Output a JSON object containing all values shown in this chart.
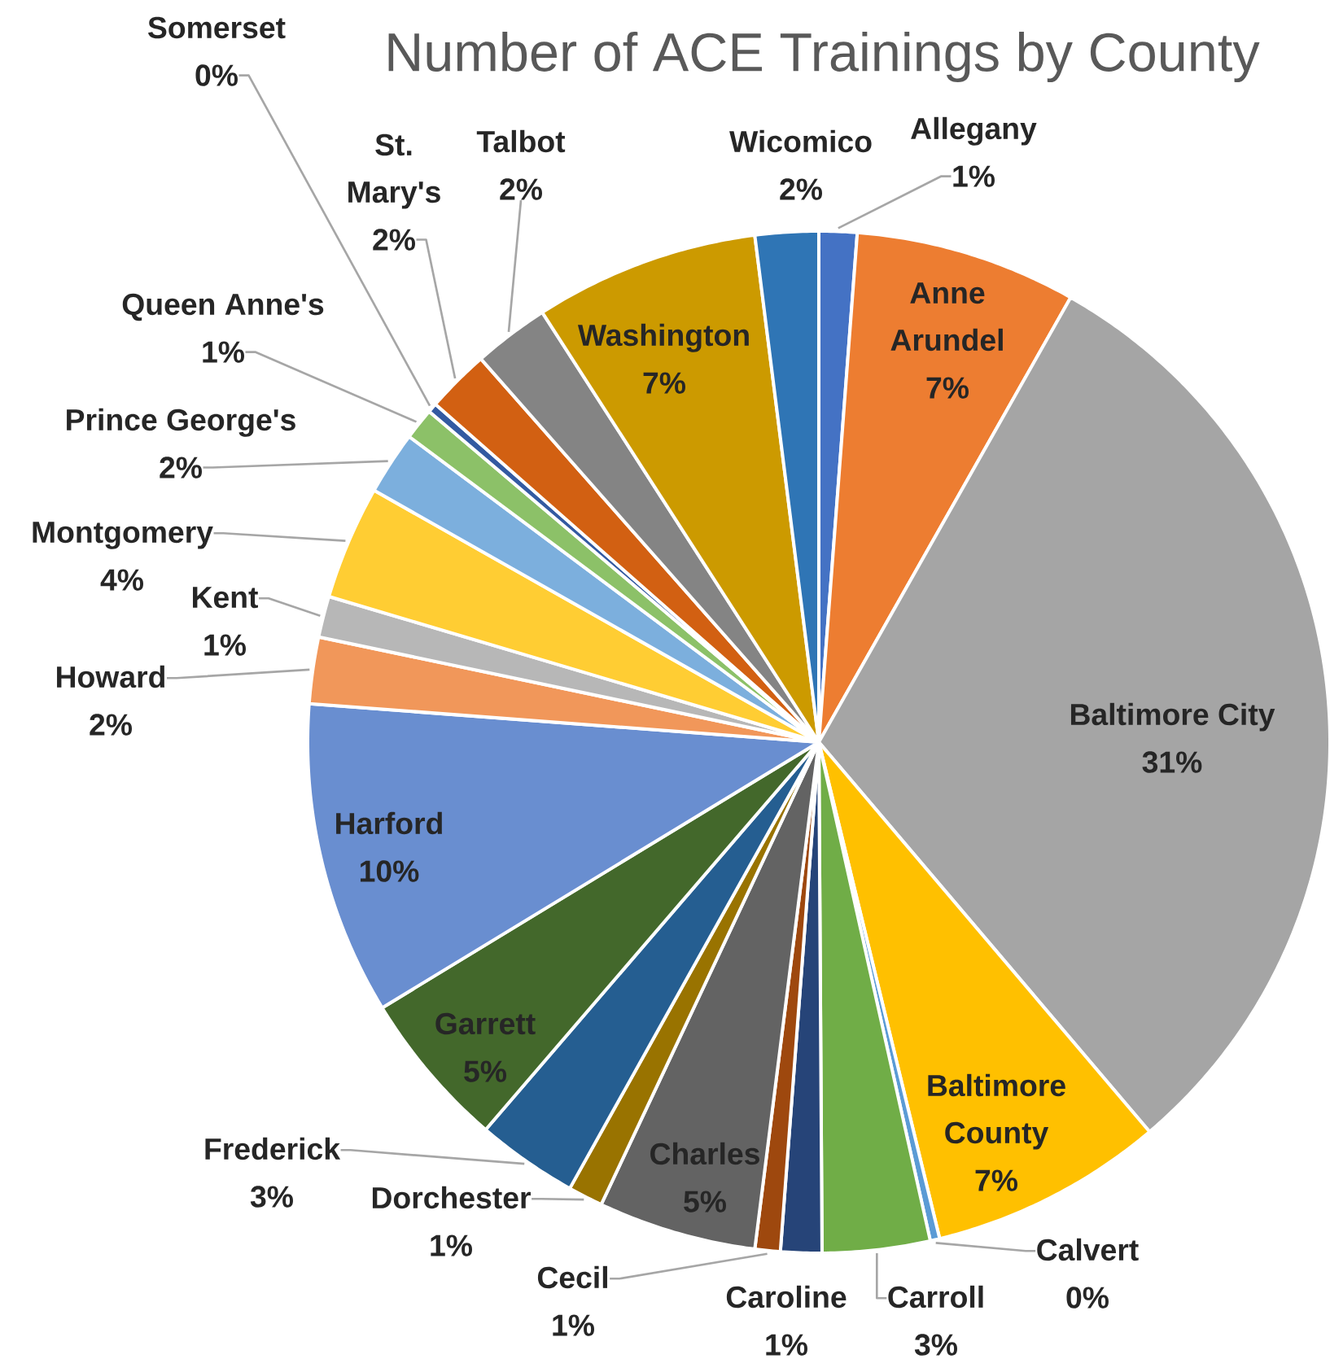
{
  "chart_data": {
    "type": "pie",
    "title": "Number of ACE Trainings by County",
    "categories": [
      "Allegany",
      "Anne Arundel",
      "Baltimore City",
      "Baltimore County",
      "Calvert",
      "Carroll",
      "Caroline",
      "Cecil",
      "Charles",
      "Dorchester",
      "Frederick",
      "Garrett",
      "Harford",
      "Howard",
      "Kent",
      "Montgomery",
      "Prince George's",
      "Queen Anne's",
      "Somerset",
      "St. Mary's",
      "Talbot",
      "Washington",
      "Wicomico"
    ],
    "values": [
      1.2,
      7.0,
      30.6,
      7.4,
      0.3,
      3.4,
      1.3,
      0.8,
      5.0,
      1.1,
      3.2,
      5.0,
      9.9,
      2.1,
      1.3,
      3.6,
      2.0,
      1.0,
      0.3,
      2.0,
      2.4,
      7.1,
      2.0
    ],
    "value_labels": [
      "1%",
      "7%",
      "31%",
      "7%",
      "0%",
      "3%",
      "1%",
      "1%",
      "5%",
      "1%",
      "3%",
      "5%",
      "10%",
      "2%",
      "1%",
      "4%",
      "2%",
      "1%",
      "0%",
      "2%",
      "2%",
      "7%",
      "2%"
    ],
    "colors": [
      "#4472c4",
      "#ed7d31",
      "#a5a5a5",
      "#ffc000",
      "#5b9bd5",
      "#70ad47",
      "#264478",
      "#9e480e",
      "#636363",
      "#997300",
      "#255e91",
      "#43682b",
      "#698ed0",
      "#f1975a",
      "#b7b7b7",
      "#ffcd33",
      "#7cafdd",
      "#8cc168",
      "#335aa1",
      "#d26012",
      "#848484",
      "#cc9a00",
      "#2f75b5"
    ]
  }
}
